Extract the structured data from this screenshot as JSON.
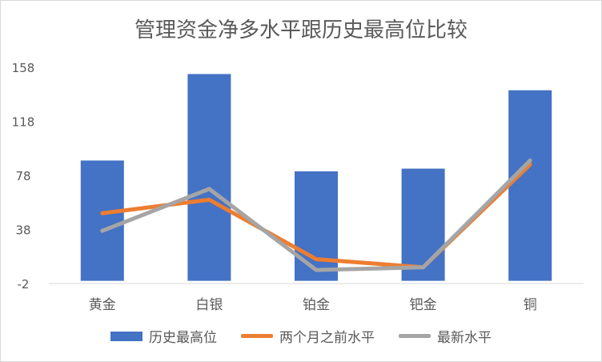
{
  "chart_data": {
    "type": "bar",
    "title": "管理资金净多水平跟历史最高位比较",
    "categories": [
      "黄金",
      "白银",
      "铂金",
      "钯金",
      "铜"
    ],
    "series": [
      {
        "name": "历史最高位",
        "kind": "bar",
        "color": "#4472C4",
        "values": [
          89,
          153,
          81,
          83,
          141
        ]
      },
      {
        "name": "两个月之前水平",
        "kind": "line",
        "color": "#ED7D31",
        "values": [
          50,
          60,
          16,
          10,
          86
        ]
      },
      {
        "name": "最新水平",
        "kind": "line",
        "color": "#A5A5A5",
        "values": [
          37,
          68,
          8,
          10,
          89
        ]
      }
    ],
    "yticks": [
      -2,
      38,
      78,
      118,
      158
    ],
    "ylim": [
      -2,
      158
    ],
    "xlabel": "",
    "ylabel": "",
    "grid": false,
    "legend": "bottom"
  }
}
